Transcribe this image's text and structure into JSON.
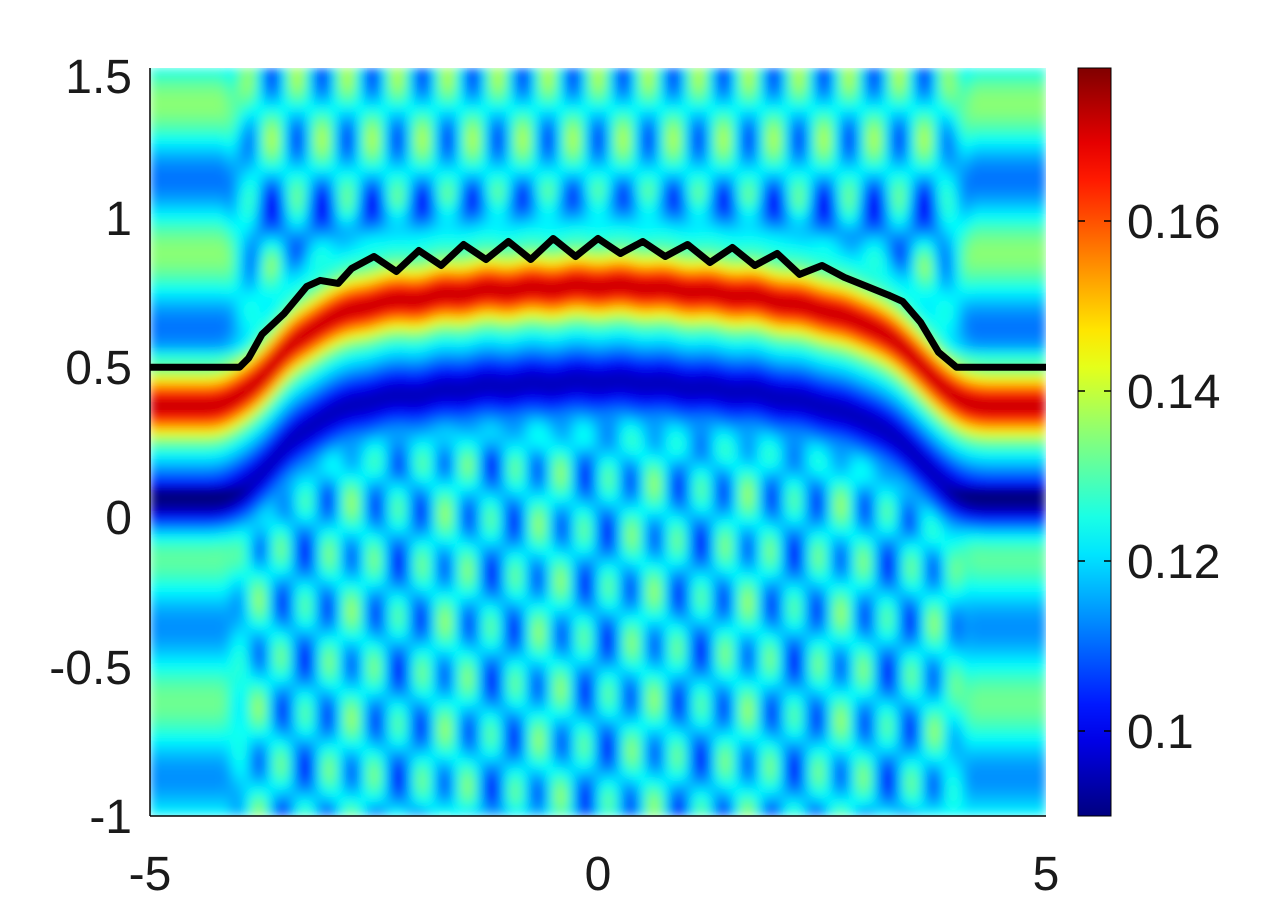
{
  "chart_data": {
    "type": "heatmap",
    "title": "",
    "xlabel": "",
    "ylabel": "",
    "xlim": [
      -5,
      5
    ],
    "ylim": [
      -1,
      1.5
    ],
    "x_ticks": [
      -5,
      0,
      5
    ],
    "x_tick_labels": [
      "-5",
      "0",
      "5"
    ],
    "y_ticks": [
      -1,
      -0.5,
      0,
      0.5,
      1,
      1.5
    ],
    "y_tick_labels": [
      "-1",
      "-0.5",
      "0",
      "0.5",
      "1",
      "1.5"
    ],
    "colorbar": {
      "colormap": "jet",
      "range": [
        0.09,
        0.178
      ],
      "ticks": [
        0.1,
        0.12,
        0.14,
        0.16
      ],
      "tick_labels": [
        "0.1",
        "0.12",
        "0.14",
        "0.16"
      ]
    },
    "field_features": {
      "background_level": 0.123,
      "strong_band": {
        "peak_value": 0.172,
        "offset_below_interface": 0.13,
        "center_value_edges": 0.175
      },
      "dark_band": {
        "min_value": 0.095,
        "offset_below_interface": 0.45
      },
      "upper_speckle_dark": 0.105,
      "lower_speckle_dark": 0.108
    },
    "interface_curve": {
      "color": "#000000",
      "x": [
        -5,
        -4.0,
        -3.9,
        -3.75,
        -3.5,
        -3.25,
        -3.1,
        -2.9,
        -2.75,
        -2.5,
        -2.25,
        -2.0,
        -1.75,
        -1.5,
        -1.25,
        -1.0,
        -0.75,
        -0.5,
        -0.25,
        0.0,
        0.25,
        0.5,
        0.75,
        1.0,
        1.25,
        1.5,
        1.75,
        2.0,
        2.25,
        2.5,
        2.75,
        3.0,
        3.25,
        3.4,
        3.6,
        3.8,
        4.0,
        5
      ],
      "y": [
        0.5,
        0.5,
        0.53,
        0.61,
        0.68,
        0.77,
        0.79,
        0.78,
        0.83,
        0.87,
        0.82,
        0.89,
        0.84,
        0.91,
        0.86,
        0.92,
        0.86,
        0.93,
        0.87,
        0.93,
        0.88,
        0.92,
        0.87,
        0.91,
        0.85,
        0.9,
        0.84,
        0.88,
        0.81,
        0.84,
        0.8,
        0.77,
        0.74,
        0.72,
        0.65,
        0.55,
        0.5,
        0.5
      ]
    }
  }
}
